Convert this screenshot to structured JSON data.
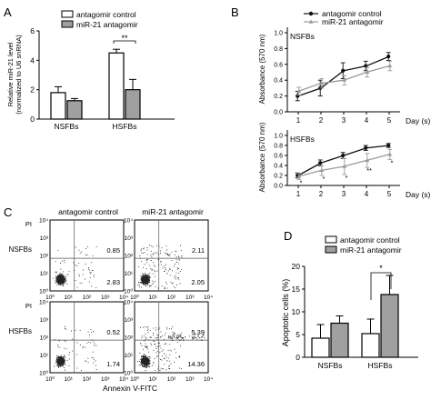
{
  "panels": [
    {
      "letter": "A",
      "chart_data": {
        "type": "bar",
        "legend": [
          "antagomir control",
          "miR-21 antagomir"
        ],
        "categories": [
          "NSFBs",
          "HSFBs"
        ],
        "series": [
          {
            "name": "antagomir control",
            "values": [
              1.8,
              4.5
            ],
            "errors": [
              0.4,
              0.25
            ]
          },
          {
            "name": "miR-21 antagomir",
            "values": [
              1.25,
              2.0
            ],
            "errors": [
              0.15,
              0.7
            ]
          }
        ],
        "ylabel_line1": "Relative miR-21 level",
        "ylabel_line2": "(normalized to U6 snRNA)",
        "ylim": [
          0,
          6
        ],
        "yticks": [
          "0",
          "2",
          "4",
          "6"
        ],
        "significance": "**"
      }
    },
    {
      "letter": "B",
      "legend": [
        "antagomir control",
        "miR-21 antagomir"
      ],
      "chart_data": [
        {
          "type": "line",
          "subtitle": "NSFBs",
          "x": [
            1,
            2,
            3,
            4,
            5
          ],
          "series": [
            {
              "name": "antagomir control",
              "values": [
                0.2,
                0.3,
                0.52,
                0.58,
                0.7
              ],
              "errors": [
                0.06,
                0.1,
                0.1,
                0.06,
                0.05
              ]
            },
            {
              "name": "miR-21 antagomir",
              "values": [
                0.26,
                0.36,
                0.4,
                0.5,
                0.58
              ],
              "errors": [
                0.05,
                0.06,
                0.06,
                0.06,
                0.06
              ]
            }
          ],
          "ylabel": "Absorbance (570 nm)",
          "xlabel": "Day (s)",
          "ylim": [
            0,
            1
          ],
          "yticks": [
            "0.0",
            "0.2",
            "0.4",
            "0.6",
            "0.8",
            "1.0"
          ],
          "xticks": [
            "1",
            "2",
            "3",
            "4",
            "5"
          ]
        },
        {
          "type": "line",
          "subtitle": "HSFBs",
          "x": [
            1,
            2,
            3,
            4,
            5
          ],
          "series": [
            {
              "name": "antagomir control",
              "values": [
                0.2,
                0.45,
                0.6,
                0.75,
                0.8
              ],
              "errors": [
                0.05,
                0.06,
                0.06,
                0.05,
                0.04
              ]
            },
            {
              "name": "miR-21 antagomir",
              "values": [
                0.18,
                0.3,
                0.38,
                0.5,
                0.62
              ],
              "errors": [
                0.06,
                0.1,
                0.16,
                0.14,
                0.1
              ]
            }
          ],
          "ylabel": "Absorbance (570 nm)",
          "xlabel": "Day (s)",
          "ylim": [
            0,
            1
          ],
          "yticks": [
            "0.0",
            "0.2",
            "0.4",
            "0.6",
            "0.8",
            "1.0"
          ],
          "xticks": [
            "1",
            "2",
            "3",
            "4",
            "5"
          ],
          "significance": [
            "*",
            "*",
            "*",
            "**",
            "*"
          ]
        }
      ]
    },
    {
      "letter": "C",
      "columns": [
        "antagomir control",
        "miR-21 antagomir"
      ],
      "rows": [
        "NSFBs",
        "HSFBs"
      ],
      "y_axis_label": "PI",
      "x_axis_label": "Annexin V-FITC",
      "axis_ticks": [
        "10⁰",
        "10¹",
        "10²",
        "10³",
        "10⁴"
      ],
      "quadrant_values": [
        {
          "row": "NSFBs",
          "column": "antagomir control",
          "upper_right": "0.85",
          "lower_right": "2.83"
        },
        {
          "row": "NSFBs",
          "column": "miR-21 antagomir",
          "upper_right": "2.11",
          "lower_right": "2.05"
        },
        {
          "row": "HSFBs",
          "column": "antagomir control",
          "upper_right": "0.52",
          "lower_right": "1.74"
        },
        {
          "row": "HSFBs",
          "column": "miR-21 antagomir",
          "upper_right": "5.39",
          "lower_right": "14.36"
        }
      ]
    },
    {
      "letter": "D",
      "chart_data": {
        "type": "bar",
        "legend": [
          "antagomir control",
          "miR-21 antagomir"
        ],
        "categories": [
          "NSFBs",
          "HSFBs"
        ],
        "series": [
          {
            "name": "antagomir control",
            "values": [
              4.2,
              5.2
            ],
            "errors": [
              3.0,
              3.2
            ]
          },
          {
            "name": "miR-21 antagomir",
            "values": [
              7.5,
              13.8
            ],
            "errors": [
              1.6,
              4.2
            ]
          }
        ],
        "ylabel": "Apoptotic cells (%)",
        "ylim": [
          0,
          20
        ],
        "yticks": [
          "0",
          "5",
          "10",
          "15",
          "20"
        ],
        "significance": "*"
      }
    }
  ],
  "colors": {
    "control": "#ffffff",
    "antagomir_bar": "#a0a0a0",
    "control_line": "#111111",
    "antagomir_line": "#9b9b9b",
    "axis": "#000000"
  }
}
